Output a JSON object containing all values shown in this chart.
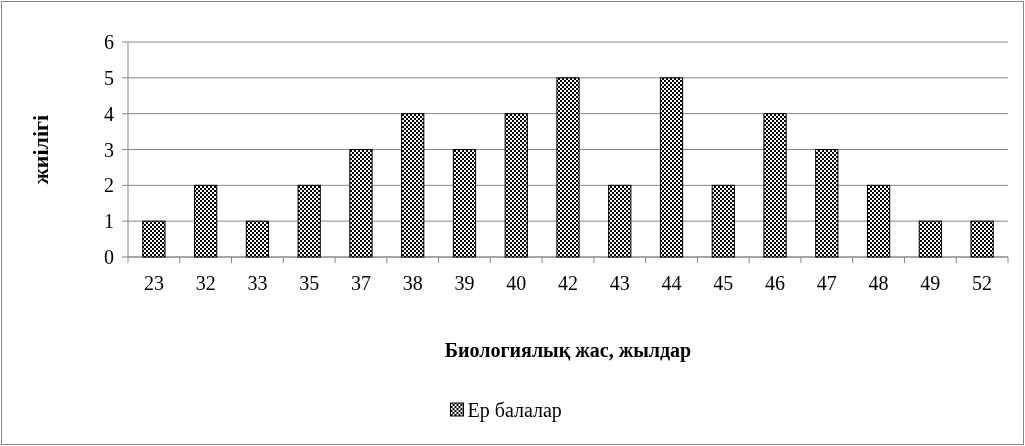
{
  "chart_data": {
    "type": "bar",
    "xlabel": "Биологиялық жас, жылдар",
    "ylabel": "жиілігі",
    "categories": [
      "23",
      "32",
      "33",
      "35",
      "37",
      "38",
      "39",
      "40",
      "42",
      "43",
      "44",
      "45",
      "46",
      "47",
      "48",
      "49",
      "52"
    ],
    "series": [
      {
        "name": "Ер балалар",
        "color": "#000000",
        "values": [
          1,
          2,
          1,
          2,
          3,
          4,
          3,
          4,
          5,
          2,
          5,
          2,
          4,
          3,
          2,
          1,
          1
        ]
      }
    ],
    "ylim": [
      0,
      6
    ],
    "yticks": [
      0,
      1,
      2,
      3,
      4,
      5,
      6
    ],
    "grid": "y",
    "legend": "bottom"
  }
}
